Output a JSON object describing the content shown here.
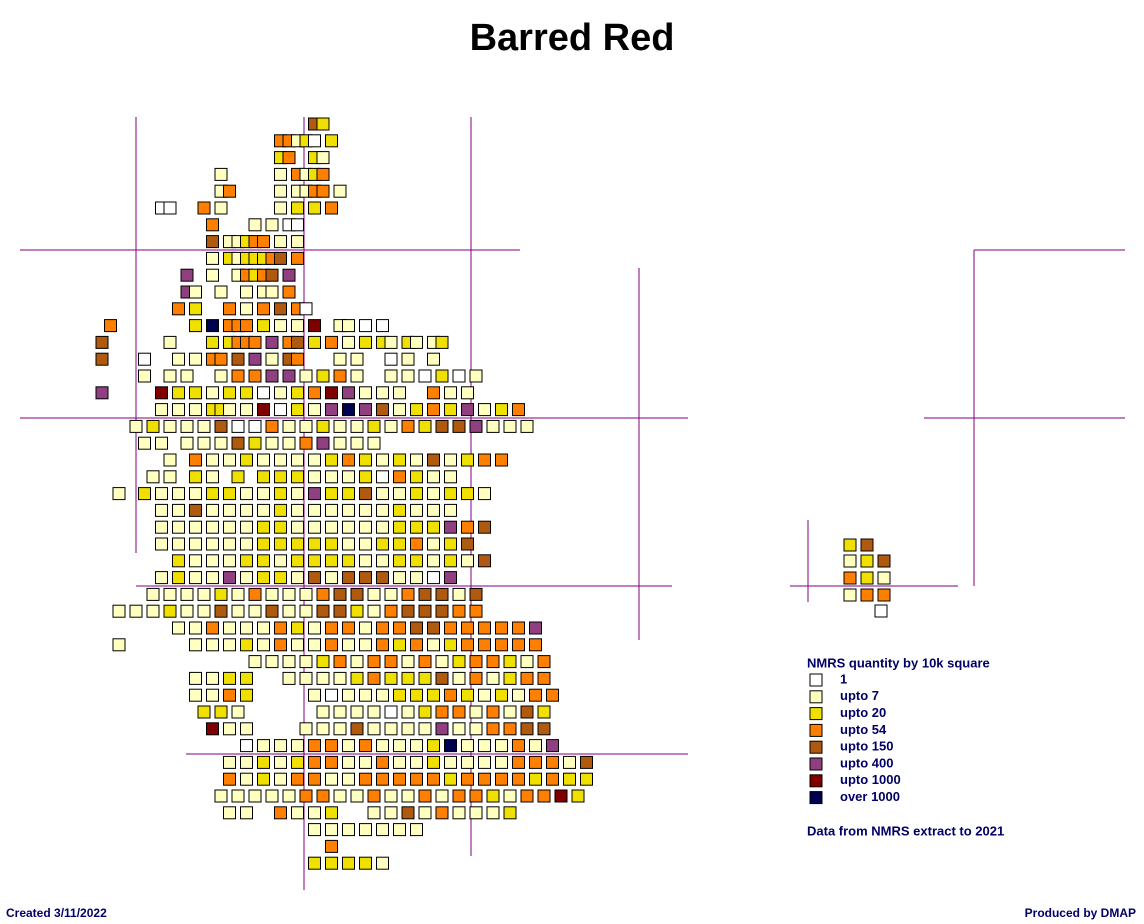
{
  "title": "Barred Red",
  "legend": {
    "title": "NMRS quantity by 10k square",
    "items": [
      {
        "label": "1",
        "color": "#ffffff"
      },
      {
        "label": "upto 7",
        "color": "#ffffc0"
      },
      {
        "label": "upto 20",
        "color": "#f0e000"
      },
      {
        "label": "upto 54",
        "color": "#ff8000"
      },
      {
        "label": "upto 150",
        "color": "#b05a10"
      },
      {
        "label": "upto 400",
        "color": "#904080"
      },
      {
        "label": "upto 1000",
        "color": "#800000"
      },
      {
        "label": "over 1000",
        "color": "#000050"
      }
    ]
  },
  "note": "Data from NMRS extract to 2021",
  "footer": {
    "created": "Created 3/11/2022",
    "produced": "Produced by DMAP"
  }
}
